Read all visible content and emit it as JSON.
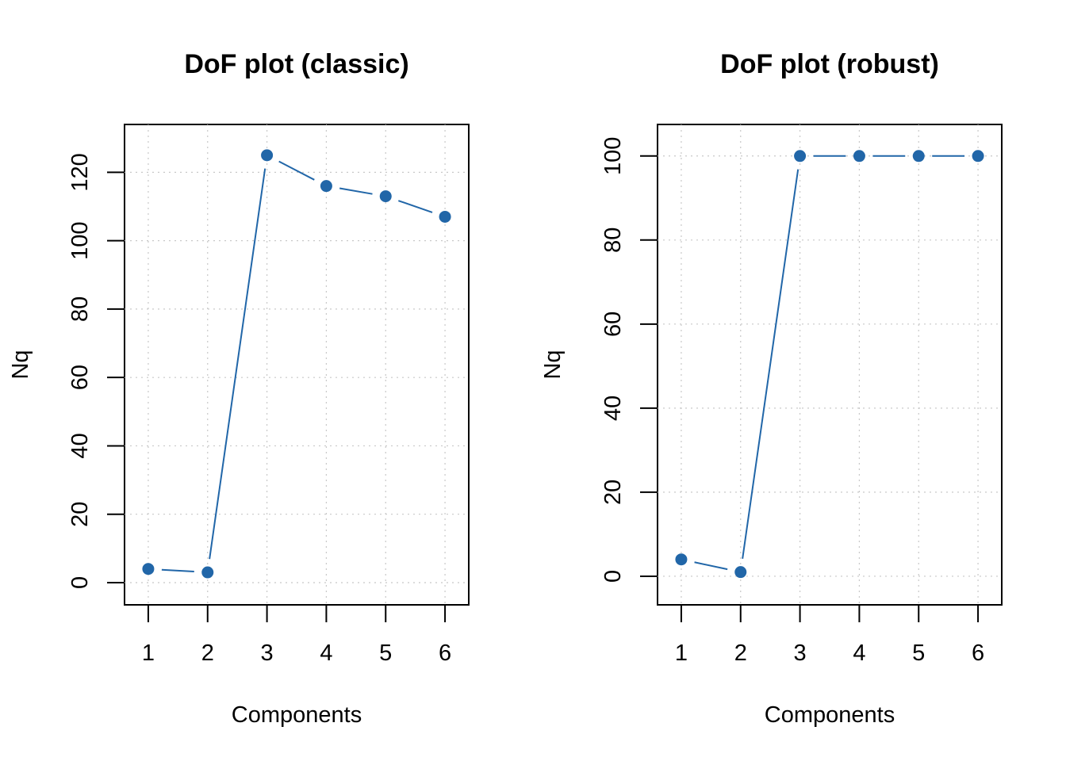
{
  "colors": {
    "series": "#2166a8",
    "grid": "#c8c8c8",
    "axis": "#000000"
  },
  "chart_data": [
    {
      "type": "line",
      "title": "DoF plot (classic)",
      "xlabel": "Components",
      "ylabel": "Nq",
      "x": [
        1,
        2,
        3,
        4,
        5,
        6
      ],
      "x_ticks": [
        "1",
        "2",
        "3",
        "4",
        "5",
        "6"
      ],
      "y_ticks": [
        "0",
        "20",
        "40",
        "60",
        "80",
        "100",
        "120"
      ],
      "xlim": [
        0.6,
        6.4
      ],
      "ylim": [
        -6.5,
        134
      ],
      "grid": true,
      "series": [
        {
          "values": [
            4,
            3,
            125,
            116,
            113,
            107
          ]
        }
      ]
    },
    {
      "type": "line",
      "title": "DoF plot (robust)",
      "xlabel": "Components",
      "ylabel": "Nq",
      "x": [
        1,
        2,
        3,
        4,
        5,
        6
      ],
      "x_ticks": [
        "1",
        "2",
        "3",
        "4",
        "5",
        "6"
      ],
      "y_ticks": [
        "0",
        "20",
        "40",
        "60",
        "80",
        "100"
      ],
      "xlim": [
        0.6,
        6.4
      ],
      "ylim": [
        -6.8,
        107.5
      ],
      "grid": true,
      "series": [
        {
          "values": [
            4,
            1,
            100,
            100,
            100,
            100
          ]
        }
      ]
    }
  ]
}
